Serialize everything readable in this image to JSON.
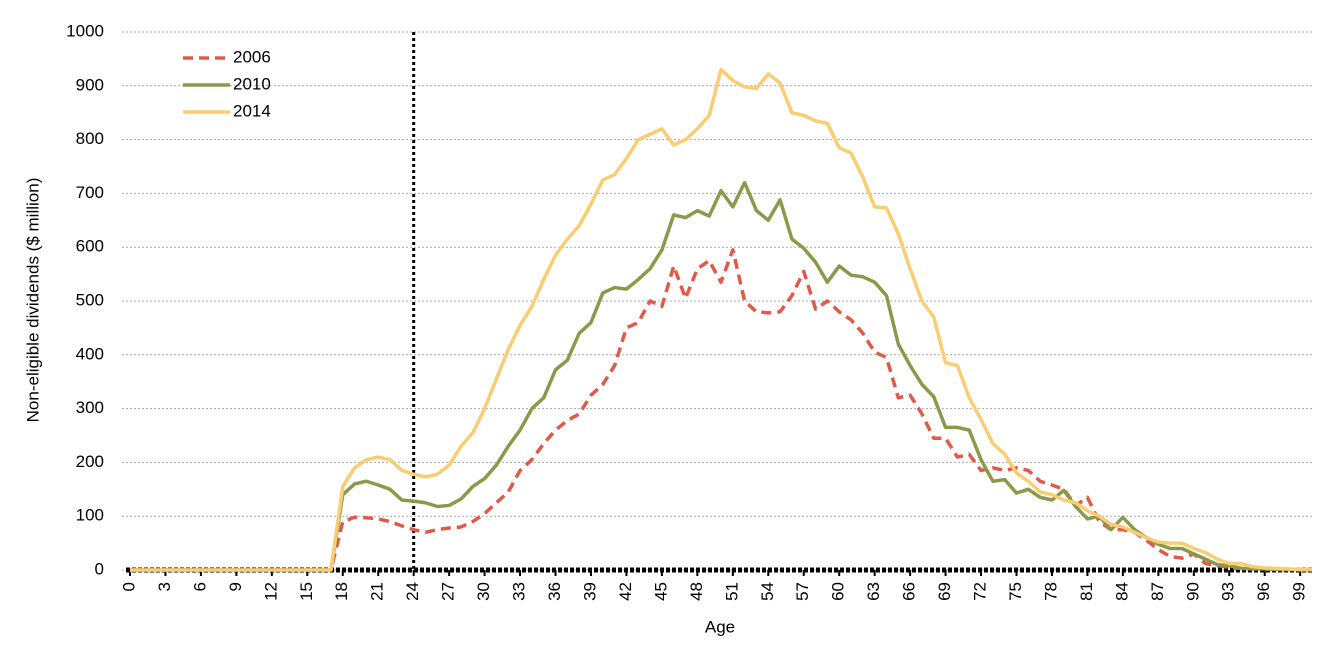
{
  "chart_data": {
    "type": "line",
    "xlabel": "Age",
    "ylabel": "Non-eligible dividends ($ million)",
    "x": [
      0,
      1,
      2,
      3,
      4,
      5,
      6,
      7,
      8,
      9,
      10,
      11,
      12,
      13,
      14,
      15,
      16,
      17,
      18,
      19,
      20,
      21,
      22,
      23,
      24,
      25,
      26,
      27,
      28,
      29,
      30,
      31,
      32,
      33,
      34,
      35,
      36,
      37,
      38,
      39,
      40,
      41,
      42,
      43,
      44,
      45,
      46,
      47,
      48,
      49,
      50,
      51,
      52,
      53,
      54,
      55,
      56,
      57,
      58,
      59,
      60,
      61,
      62,
      63,
      64,
      65,
      66,
      67,
      68,
      69,
      70,
      71,
      72,
      73,
      74,
      75,
      76,
      77,
      78,
      79,
      80,
      81,
      82,
      83,
      84,
      85,
      86,
      87,
      88,
      89,
      90,
      91,
      92,
      93,
      94,
      95,
      96,
      97,
      98,
      99,
      100
    ],
    "series": [
      {
        "name": "2006",
        "color": "#e05a4a",
        "line_style": "dashed",
        "values": [
          0,
          0,
          0,
          0,
          0,
          0,
          0,
          0,
          0,
          0,
          0,
          0,
          0,
          0,
          0,
          0,
          0,
          0,
          90,
          98,
          97,
          95,
          90,
          82,
          75,
          70,
          75,
          78,
          80,
          90,
          105,
          125,
          145,
          185,
          205,
          235,
          260,
          278,
          290,
          325,
          345,
          380,
          450,
          460,
          500,
          490,
          565,
          505,
          560,
          575,
          535,
          595,
          500,
          480,
          478,
          480,
          510,
          555,
          485,
          500,
          480,
          465,
          440,
          405,
          395,
          320,
          325,
          290,
          245,
          245,
          210,
          215,
          185,
          190,
          185,
          190,
          185,
          165,
          158,
          150,
          120,
          135,
          90,
          75,
          75,
          70,
          55,
          38,
          25,
          22,
          30,
          12,
          8,
          5,
          3,
          2,
          2,
          1,
          1,
          0,
          0
        ]
      },
      {
        "name": "2010",
        "color": "#8a9a4b",
        "line_style": "solid",
        "values": [
          0,
          0,
          0,
          0,
          0,
          0,
          0,
          0,
          0,
          0,
          0,
          0,
          0,
          0,
          0,
          0,
          0,
          0,
          140,
          160,
          165,
          158,
          150,
          130,
          128,
          125,
          118,
          120,
          132,
          155,
          170,
          195,
          230,
          260,
          300,
          320,
          372,
          390,
          440,
          460,
          515,
          525,
          522,
          540,
          560,
          595,
          660,
          655,
          668,
          658,
          705,
          675,
          720,
          668,
          650,
          688,
          615,
          598,
          572,
          535,
          565,
          548,
          545,
          535,
          510,
          420,
          380,
          345,
          322,
          265,
          265,
          260,
          205,
          165,
          168,
          143,
          150,
          135,
          130,
          148,
          118,
          95,
          100,
          75,
          98,
          75,
          60,
          48,
          40,
          40,
          30,
          20,
          10,
          8,
          3,
          2,
          2,
          1,
          1,
          1,
          0
        ]
      },
      {
        "name": "2014",
        "color": "#f9cd72",
        "line_style": "solid",
        "values": [
          0,
          0,
          0,
          0,
          0,
          0,
          0,
          0,
          0,
          0,
          0,
          0,
          0,
          0,
          0,
          0,
          0,
          0,
          155,
          190,
          205,
          210,
          205,
          185,
          178,
          173,
          178,
          195,
          230,
          255,
          300,
          355,
          410,
          455,
          490,
          540,
          585,
          615,
          640,
          680,
          725,
          735,
          765,
          800,
          810,
          820,
          790,
          800,
          820,
          845,
          930,
          910,
          898,
          895,
          922,
          905,
          850,
          845,
          835,
          830,
          785,
          775,
          730,
          675,
          673,
          625,
          560,
          500,
          470,
          385,
          380,
          320,
          280,
          235,
          215,
          180,
          165,
          145,
          140,
          130,
          125,
          110,
          100,
          85,
          80,
          70,
          60,
          52,
          50,
          50,
          40,
          32,
          20,
          12,
          12,
          6,
          4,
          3,
          2,
          1,
          1
        ]
      }
    ],
    "xlim": [
      0,
      100
    ],
    "xticks": [
      0,
      3,
      6,
      9,
      12,
      15,
      18,
      21,
      24,
      27,
      30,
      33,
      36,
      39,
      42,
      45,
      48,
      51,
      54,
      57,
      60,
      63,
      66,
      69,
      72,
      75,
      78,
      81,
      84,
      87,
      90,
      93,
      96,
      99
    ],
    "ylim": [
      0,
      1000
    ],
    "yticks": [
      0,
      100,
      200,
      300,
      400,
      500,
      600,
      700,
      800,
      900,
      1000
    ],
    "grid": true,
    "vline": 24,
    "legend": "top-left"
  }
}
